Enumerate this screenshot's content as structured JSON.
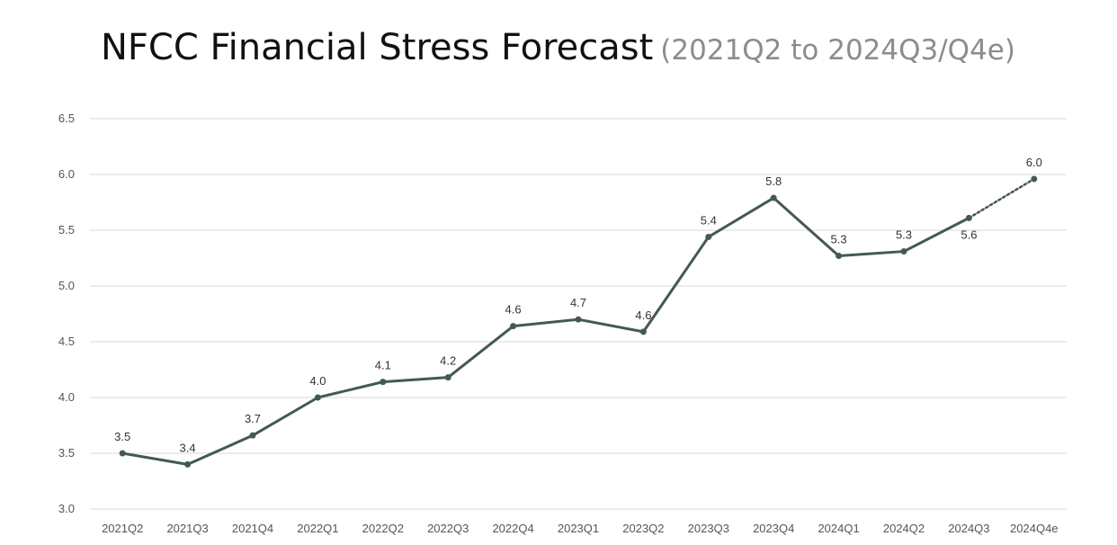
{
  "header": {
    "title": "NFCC Financial Stress Forecast",
    "subtitle": "(2021Q2 to 2024Q3/Q4e)"
  },
  "chart_data": {
    "type": "line",
    "title": "NFCC Financial Stress Forecast",
    "subtitle": "(2021Q2 to 2024Q3/Q4e)",
    "xlabel": "",
    "ylabel": "",
    "categories": [
      "2021Q2",
      "2021Q3",
      "2021Q4",
      "2022Q1",
      "2022Q2",
      "2022Q3",
      "2022Q4",
      "2023Q1",
      "2023Q2",
      "2023Q3",
      "2023Q4",
      "2024Q1",
      "2024Q2",
      "2024Q3",
      "2024Q4e"
    ],
    "series": [
      {
        "values": [
          3.5,
          3.4,
          3.66,
          4.0,
          4.14,
          4.18,
          4.64,
          4.7,
          4.59,
          5.44,
          5.79,
          5.27,
          5.31,
          5.61,
          5.96
        ],
        "labels": [
          "3.5",
          "3.4",
          "3.7",
          "4.0",
          "4.1",
          "4.2",
          "4.6",
          "4.7",
          "4.6",
          "5.4",
          "5.8",
          "5.3",
          "5.3",
          "5.6",
          "6.0"
        ],
        "color": "#435a4f",
        "forecast_from_index": 13
      }
    ],
    "ylim": [
      3.0,
      6.5
    ],
    "yticks": [
      "3.0",
      "3.5",
      "4.0",
      "4.5",
      "5.0",
      "5.5",
      "6.0",
      "6.5"
    ],
    "grid": true,
    "legend": "none",
    "gridColor": "#d9d9d9"
  }
}
